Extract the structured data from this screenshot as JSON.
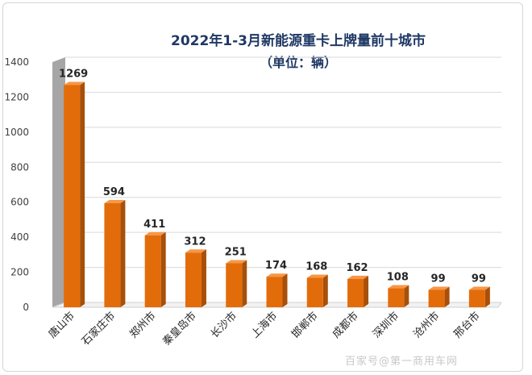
{
  "chart_data": {
    "type": "bar",
    "title": "2022年1-3月新能源重卡上牌量前十城市",
    "subtitle": "（单位：辆）",
    "categories": [
      "唐山市",
      "石家庄市",
      "郑州市",
      "秦皇岛市",
      "长沙市",
      "上海市",
      "邯郸市",
      "成都市",
      "深圳市",
      "沧州市",
      "邢台市"
    ],
    "values": [
      1269,
      594,
      411,
      312,
      251,
      174,
      168,
      162,
      108,
      99,
      99
    ],
    "ylim": [
      0,
      1400
    ],
    "yticks": [
      0,
      200,
      400,
      600,
      800,
      1000,
      1200,
      1400
    ],
    "grid": true,
    "legend": "none",
    "bar_color": "#e36c0a"
  },
  "watermark": "百家号@第一商用车网"
}
